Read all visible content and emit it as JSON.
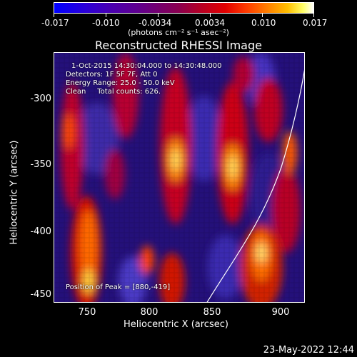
{
  "colorbar": {
    "tick_labels": [
      "-0.017",
      "-0.010",
      "-0.0034",
      "0.0034",
      "0.010",
      "0.017"
    ],
    "units": "(photons cm⁻² s⁻¹ asec⁻²)"
  },
  "title": "Reconstructed RHESSI Image",
  "info": {
    "line1": "1-Oct-2015 14:30:04.000 to 14:30:48.000",
    "line2": "Detectors: 1F 5F 7F, Att 0",
    "line3": "Energy Range: 25.0 - 50.0 keV",
    "line4": "Clean     Total counts: 626.",
    "peak": "Position of Peak = [880,-419]"
  },
  "axes": {
    "xlabel": "Heliocentric X (arcsec)",
    "ylabel": "Heliocentric Y (arcsec)",
    "xticks": [
      "750",
      "800",
      "850",
      "900"
    ],
    "yticks": [
      "-300",
      "-350",
      "-400",
      "-450"
    ]
  },
  "timestamp": "23-May-2022 12:44",
  "colors": {
    "background": "#000000",
    "foreground": "#ffffff"
  }
}
